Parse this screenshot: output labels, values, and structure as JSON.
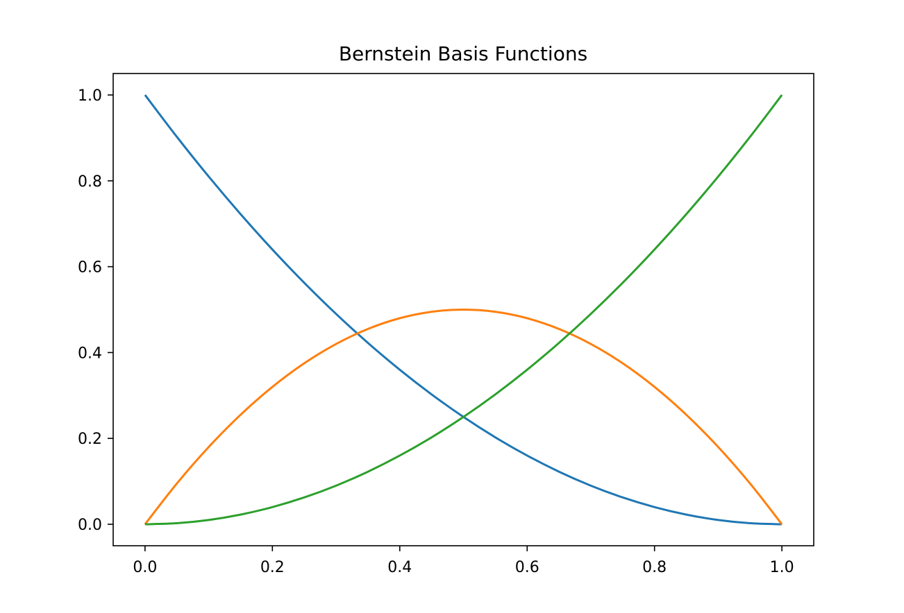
{
  "chart_data": {
    "type": "line",
    "title": "Bernstein Basis Functions",
    "xlabel": "",
    "ylabel": "",
    "xlim": [
      -0.05,
      1.05
    ],
    "ylim": [
      -0.05,
      1.05
    ],
    "x_ticks": [
      0.0,
      0.2,
      0.4,
      0.6,
      0.8,
      1.0
    ],
    "x_tick_labels": [
      "0.0",
      "0.2",
      "0.4",
      "0.6",
      "0.8",
      "1.0"
    ],
    "y_ticks": [
      0.0,
      0.2,
      0.4,
      0.6,
      0.8,
      1.0
    ],
    "y_tick_labels": [
      "0.0",
      "0.2",
      "0.4",
      "0.6",
      "0.8",
      "1.0"
    ],
    "grid": false,
    "legend": "none",
    "x": [
      0.0,
      0.05,
      0.1,
      0.15,
      0.2,
      0.25,
      0.3,
      0.35,
      0.4,
      0.45,
      0.5,
      0.55,
      0.6,
      0.65,
      0.7,
      0.75,
      0.8,
      0.85,
      0.9,
      0.95,
      1.0
    ],
    "series": [
      {
        "color": "#1f77b4",
        "values": [
          1.0,
          0.9025,
          0.81,
          0.7225,
          0.64,
          0.5625,
          0.49,
          0.4225,
          0.36,
          0.3025,
          0.25,
          0.2025,
          0.16,
          0.1225,
          0.09,
          0.0625,
          0.04,
          0.0225,
          0.01,
          0.0025,
          0.0
        ]
      },
      {
        "color": "#ff7f0e",
        "values": [
          0.0,
          0.095,
          0.18,
          0.255,
          0.32,
          0.375,
          0.42,
          0.455,
          0.48,
          0.495,
          0.5,
          0.495,
          0.48,
          0.455,
          0.42,
          0.375,
          0.32,
          0.255,
          0.18,
          0.095,
          0.0
        ]
      },
      {
        "color": "#2ca02c",
        "values": [
          0.0,
          0.0025,
          0.01,
          0.0225,
          0.04,
          0.0625,
          0.09,
          0.1225,
          0.16,
          0.2025,
          0.25,
          0.3025,
          0.36,
          0.4225,
          0.49,
          0.5625,
          0.64,
          0.7225,
          0.81,
          0.9025,
          1.0
        ]
      }
    ]
  }
}
